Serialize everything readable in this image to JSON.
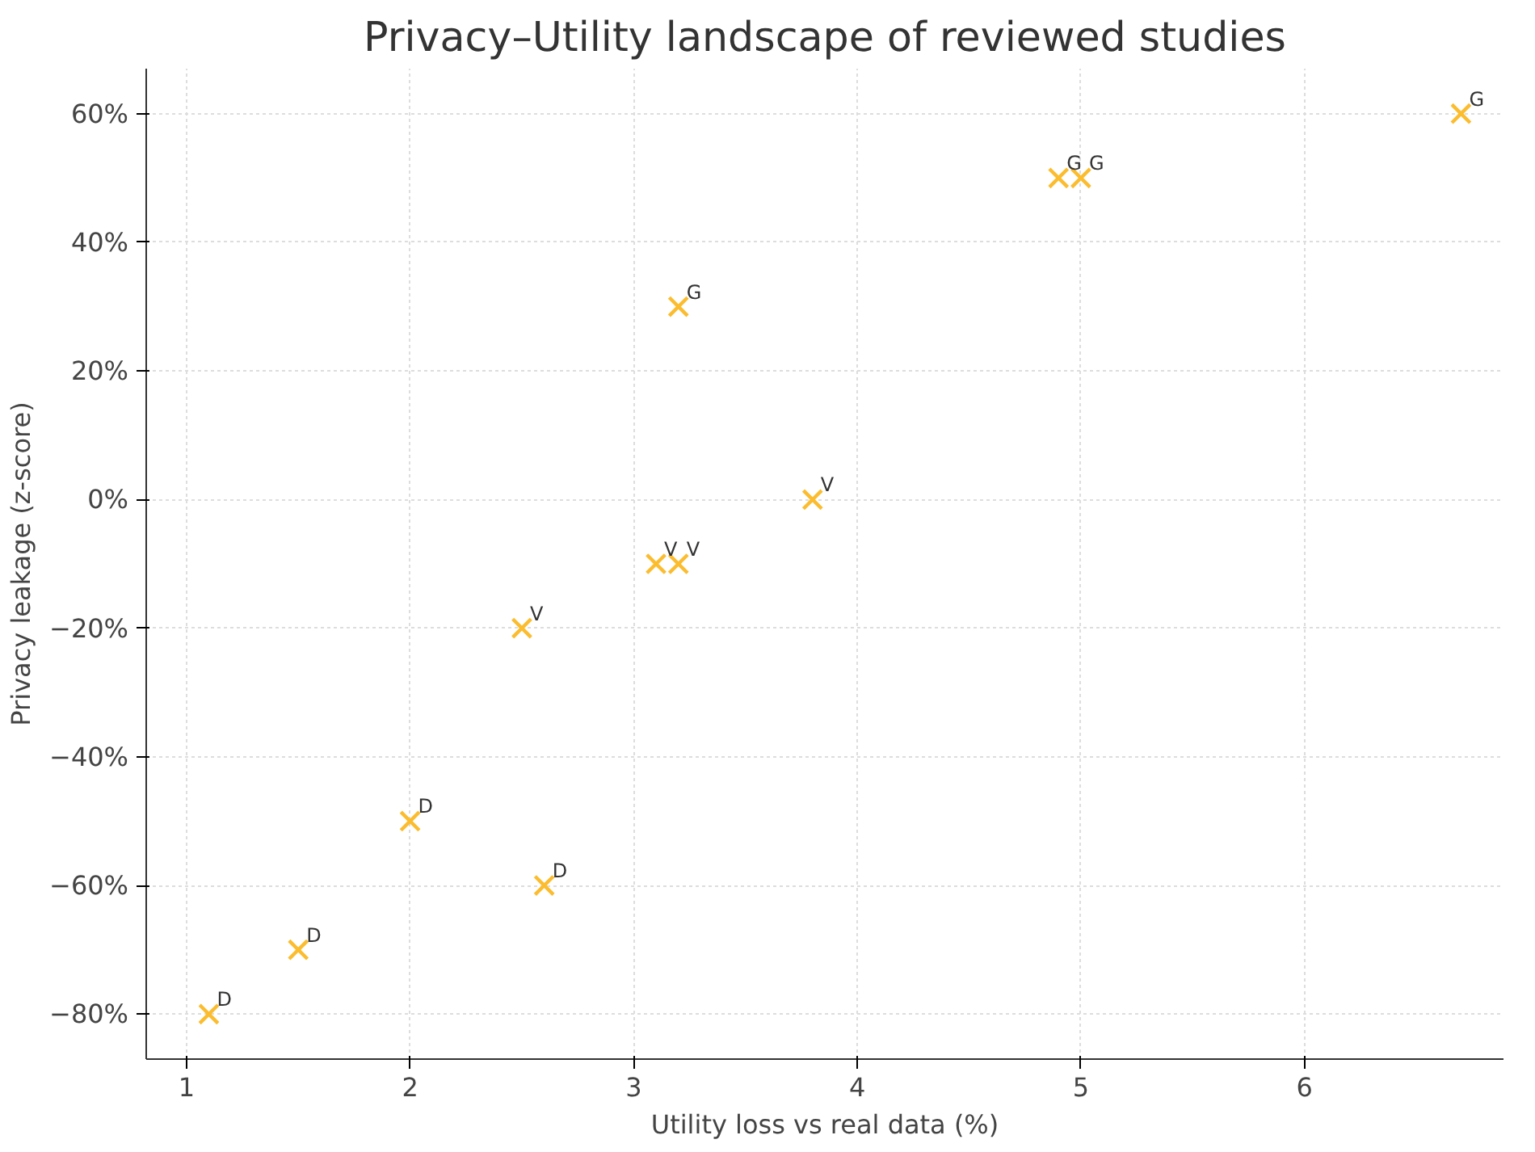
{
  "chart_data": {
    "type": "scatter",
    "title": "Privacy–Utility landscape of reviewed studies",
    "xlabel": "Utility loss vs real data (%)",
    "ylabel": "Privacy leakage (z-score)",
    "x": [
      1.1,
      1.5,
      2.0,
      2.6,
      2.5,
      3.1,
      3.2,
      3.8,
      3.2,
      4.9,
      5.0,
      6.7
    ],
    "series": [
      {
        "color": "#fbbc2e",
        "values": [
          -80,
          -70,
          -50,
          -60,
          -20,
          -10,
          -10,
          0,
          30,
          50,
          50,
          60
        ]
      }
    ],
    "marker": "cross",
    "grid": true,
    "xlim": [
      0.82,
      6.89
    ],
    "xticks": [
      1,
      2,
      3,
      4,
      5,
      6
    ],
    "ylim": [
      -87,
      67
    ],
    "yticks": [
      {
        "value": -80,
        "label": "−80%"
      },
      {
        "value": -60,
        "label": "−60%"
      },
      {
        "value": -40,
        "label": "−40%"
      },
      {
        "value": -20,
        "label": "−20%"
      },
      {
        "value": 0,
        "label": "0%"
      },
      {
        "value": 20,
        "label": "20%"
      },
      {
        "value": 40,
        "label": "40%"
      },
      {
        "value": 60,
        "label": "60%"
      }
    ],
    "annotations": [
      {
        "text": "D",
        "x": 1.1,
        "y": -80
      },
      {
        "text": "D",
        "x": 1.5,
        "y": -70
      },
      {
        "text": "D",
        "x": 2.0,
        "y": -50
      },
      {
        "text": "D",
        "x": 2.6,
        "y": -60
      },
      {
        "text": "V",
        "x": 2.5,
        "y": -20
      },
      {
        "text": "V",
        "x": 3.1,
        "y": -10
      },
      {
        "text": "V",
        "x": 3.2,
        "y": -10
      },
      {
        "text": "V",
        "x": 3.8,
        "y": 0
      },
      {
        "text": "G",
        "x": 3.2,
        "y": 30
      },
      {
        "text": "G",
        "x": 4.9,
        "y": 50
      },
      {
        "text": "G",
        "x": 5.0,
        "y": 50
      },
      {
        "text": "G",
        "x": 6.7,
        "y": 60
      }
    ]
  }
}
